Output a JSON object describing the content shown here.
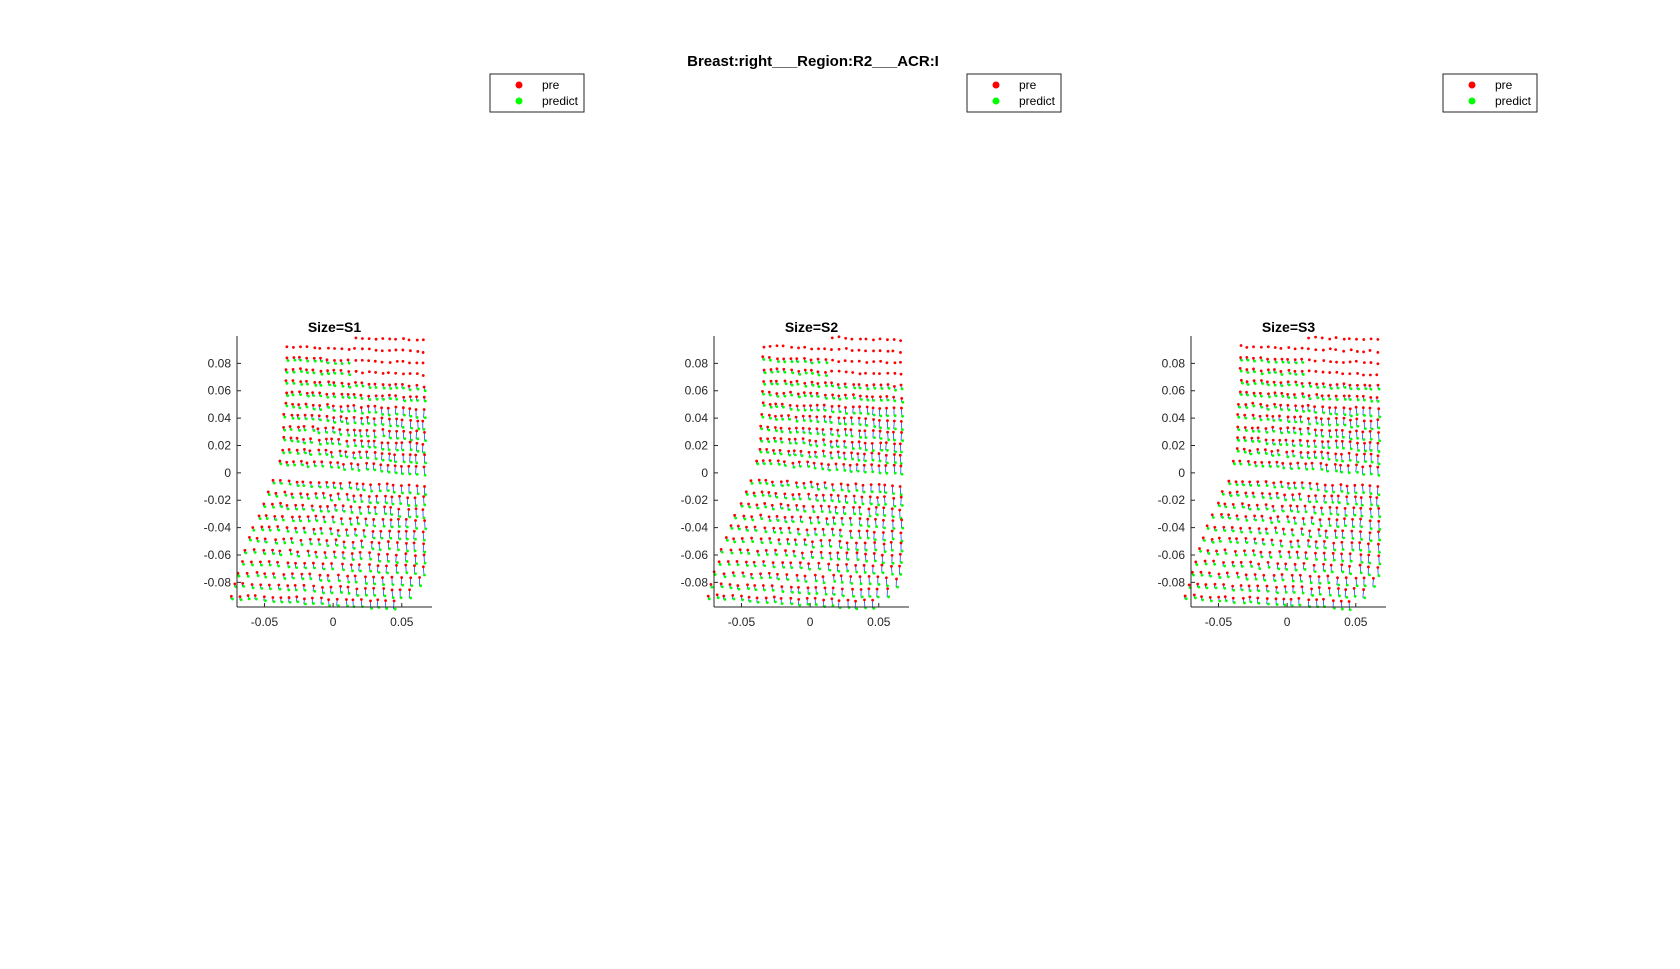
{
  "figure": {
    "suptitle": "Breast:right___Region:R2___ACR:I"
  },
  "legend": {
    "entries": [
      {
        "label": "pre",
        "color": "#ff0000"
      },
      {
        "label": "predict",
        "color": "#00ff00"
      }
    ]
  },
  "colors": {
    "pre": "#ff0000",
    "predict": "#00ff00",
    "displacement": "#1f4fff"
  },
  "chart_data": [
    {
      "type": "scatter",
      "title": "Size=S1",
      "xlim": [
        -0.07,
        0.072
      ],
      "ylim": [
        -0.098,
        0.1
      ],
      "xticks": [
        -0.05,
        0,
        0.05
      ],
      "xtick_labels": [
        "-0.05",
        "0",
        "0.05"
      ],
      "yticks": [
        -0.08,
        -0.06,
        -0.04,
        -0.02,
        0,
        0.02,
        0.04,
        0.06,
        0.08
      ],
      "ytick_labels": [
        "-0.08",
        "-0.06",
        "-0.04",
        "-0.02",
        "0",
        "0.02",
        "0.04",
        "0.06",
        "0.08"
      ],
      "series": [
        {
          "name": "pre",
          "color": "#ff0000"
        },
        {
          "name": "predict",
          "color": "#00ff00"
        }
      ],
      "grid": false,
      "legend_position": "top-right"
    },
    {
      "type": "scatter",
      "title": "Size=S2",
      "xlim": [
        -0.07,
        0.072
      ],
      "ylim": [
        -0.098,
        0.1
      ],
      "xticks": [
        -0.05,
        0,
        0.05
      ],
      "xtick_labels": [
        "-0.05",
        "0",
        "0.05"
      ],
      "yticks": [
        -0.08,
        -0.06,
        -0.04,
        -0.02,
        0,
        0.02,
        0.04,
        0.06,
        0.08
      ],
      "ytick_labels": [
        "-0.08",
        "-0.06",
        "-0.04",
        "-0.02",
        "0",
        "0.02",
        "0.04",
        "0.06",
        "0.08"
      ],
      "series": [
        {
          "name": "pre",
          "color": "#ff0000"
        },
        {
          "name": "predict",
          "color": "#00ff00"
        }
      ],
      "grid": false,
      "legend_position": "top-right"
    },
    {
      "type": "scatter",
      "title": "Size=S3",
      "xlim": [
        -0.07,
        0.072
      ],
      "ylim": [
        -0.098,
        0.1
      ],
      "xticks": [
        -0.05,
        0,
        0.05
      ],
      "xtick_labels": [
        "-0.05",
        "0",
        "0.05"
      ],
      "yticks": [
        -0.08,
        -0.06,
        -0.04,
        -0.02,
        0,
        0.02,
        0.04,
        0.06,
        0.08
      ],
      "ytick_labels": [
        "-0.08",
        "-0.06",
        "-0.04",
        "-0.02",
        "0",
        "0.02",
        "0.04",
        "0.06",
        "0.08"
      ],
      "series": [
        {
          "name": "pre",
          "color": "#ff0000"
        },
        {
          "name": "predict",
          "color": "#00ff00"
        }
      ],
      "grid": false,
      "legend_position": "top-right"
    }
  ]
}
